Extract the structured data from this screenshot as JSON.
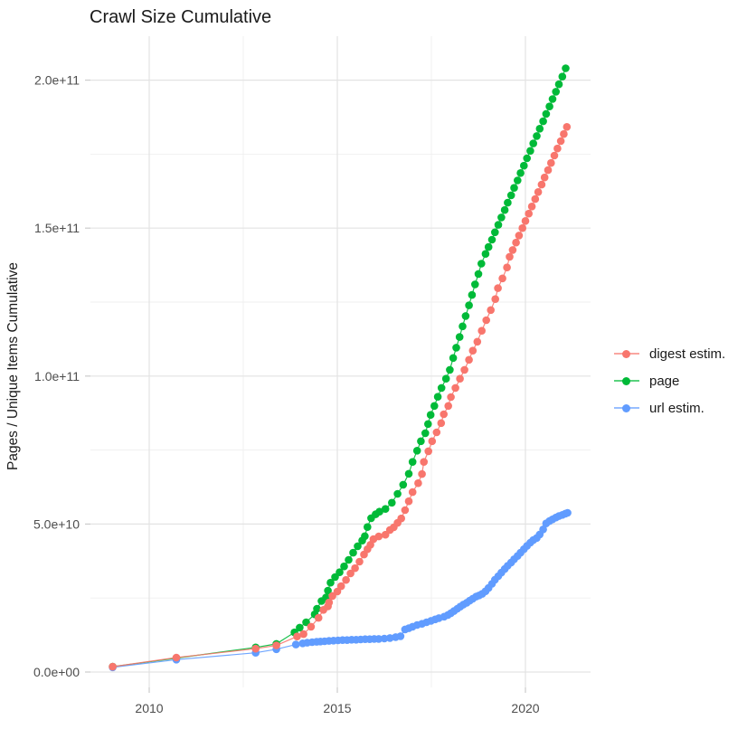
{
  "title": "Crawl Size Cumulative",
  "axes": {
    "y_title": "Pages / Unique Items Cumulative",
    "y_ticks": [
      "0.0e+00",
      "5.0e+10",
      "1.0e+11",
      "1.5e+11",
      "2.0e+11"
    ],
    "y_tick_values_e9": [
      0,
      50,
      100,
      150,
      200
    ],
    "y_minor_values_e9": [
      25,
      75,
      125,
      175
    ],
    "x_ticks": [
      "2010",
      "2015",
      "2020"
    ],
    "x_tick_values": [
      2010,
      2015,
      2020
    ],
    "x_minor_values": [
      2012.5,
      2017.5
    ]
  },
  "legend": {
    "position": "right",
    "items": [
      {
        "label": "digest estim.",
        "color": "#F8766D"
      },
      {
        "label": "page",
        "color": "#00BA38"
      },
      {
        "label": "url estim.",
        "color": "#619CFF"
      }
    ]
  },
  "chart_data": {
    "type": "line",
    "title": "Crawl Size Cumulative",
    "xlabel": "",
    "ylabel": "Pages / Unique Items Cumulative",
    "x_unit": "decimal year",
    "value_unit": "items, in billions (1e9)",
    "xlim": [
      2008.6,
      2021.8
    ],
    "ylim_e9": [
      0,
      215
    ],
    "grid": true,
    "marker": "point",
    "series": [
      {
        "name": "digest estim.",
        "color": "#F8766D",
        "z": 3,
        "points": [
          [
            2009.03,
            1.8
          ],
          [
            2010.72,
            4.9
          ],
          [
            2012.83,
            7.9
          ],
          [
            2013.38,
            9.0
          ],
          [
            2013.93,
            12.0
          ],
          [
            2014.1,
            12.8
          ],
          [
            2014.3,
            15.3
          ],
          [
            2014.5,
            18.3
          ],
          [
            2014.63,
            21.0
          ],
          [
            2014.75,
            22.2
          ],
          [
            2014.78,
            23.5
          ],
          [
            2014.87,
            25.7
          ],
          [
            2015.0,
            27.2
          ],
          [
            2015.1,
            29.0
          ],
          [
            2015.23,
            31.1
          ],
          [
            2015.35,
            33.3
          ],
          [
            2015.47,
            35.1
          ],
          [
            2015.59,
            37.3
          ],
          [
            2015.71,
            39.7
          ],
          [
            2015.8,
            41.5
          ],
          [
            2015.88,
            43.0
          ],
          [
            2015.96,
            44.9
          ],
          [
            2016.1,
            45.8
          ],
          [
            2016.28,
            46.4
          ],
          [
            2016.4,
            48.0
          ],
          [
            2016.5,
            48.9
          ],
          [
            2016.6,
            50.4
          ],
          [
            2016.7,
            51.9
          ],
          [
            2016.8,
            54.7
          ],
          [
            2016.9,
            57.7
          ],
          [
            2017.0,
            60.8
          ],
          [
            2017.15,
            63.8
          ],
          [
            2017.25,
            66.9
          ],
          [
            2017.3,
            71.0
          ],
          [
            2017.42,
            74.6
          ],
          [
            2017.52,
            78.0
          ],
          [
            2017.64,
            81.0
          ],
          [
            2017.76,
            84.1
          ],
          [
            2017.83,
            87.1
          ],
          [
            2017.95,
            89.9
          ],
          [
            2018.02,
            92.9
          ],
          [
            2018.14,
            96.0
          ],
          [
            2018.26,
            99.1
          ],
          [
            2018.38,
            102.1
          ],
          [
            2018.5,
            105.5
          ],
          [
            2018.6,
            108.6
          ],
          [
            2018.72,
            111.6
          ],
          [
            2018.84,
            115.3
          ],
          [
            2018.96,
            118.9
          ],
          [
            2019.08,
            122.3
          ],
          [
            2019.2,
            126.0
          ],
          [
            2019.27,
            129.7
          ],
          [
            2019.39,
            133.0
          ],
          [
            2019.51,
            136.7
          ],
          [
            2019.58,
            140.3
          ],
          [
            2019.66,
            142.6
          ],
          [
            2019.75,
            145.1
          ],
          [
            2019.83,
            147.5
          ],
          [
            2019.92,
            150.0
          ],
          [
            2020.0,
            152.4
          ],
          [
            2020.09,
            154.9
          ],
          [
            2020.17,
            157.3
          ],
          [
            2020.26,
            159.8
          ],
          [
            2020.34,
            162.2
          ],
          [
            2020.43,
            164.7
          ],
          [
            2020.51,
            167.1
          ],
          [
            2020.6,
            169.6
          ],
          [
            2020.68,
            172.0
          ],
          [
            2020.77,
            174.5
          ],
          [
            2020.85,
            176.9
          ],
          [
            2020.94,
            179.4
          ],
          [
            2021.02,
            181.8
          ],
          [
            2021.1,
            184.2
          ]
        ]
      },
      {
        "name": "page",
        "color": "#00BA38",
        "z": 1,
        "points": [
          [
            2009.03,
            1.8
          ],
          [
            2010.72,
            4.7
          ],
          [
            2012.83,
            8.3
          ],
          [
            2013.38,
            9.5
          ],
          [
            2013.86,
            13.4
          ],
          [
            2014.0,
            15.0
          ],
          [
            2014.17,
            16.8
          ],
          [
            2014.4,
            19.5
          ],
          [
            2014.46,
            21.4
          ],
          [
            2014.58,
            24.0
          ],
          [
            2014.7,
            25.2
          ],
          [
            2014.75,
            27.5
          ],
          [
            2014.82,
            30.2
          ],
          [
            2014.94,
            32.1
          ],
          [
            2015.06,
            33.7
          ],
          [
            2015.18,
            35.7
          ],
          [
            2015.3,
            37.9
          ],
          [
            2015.42,
            40.3
          ],
          [
            2015.54,
            42.5
          ],
          [
            2015.66,
            44.4
          ],
          [
            2015.73,
            45.9
          ],
          [
            2015.8,
            49.0
          ],
          [
            2015.9,
            52.0
          ],
          [
            2016.02,
            53.3
          ],
          [
            2016.12,
            54.2
          ],
          [
            2016.28,
            55.1
          ],
          [
            2016.45,
            57.2
          ],
          [
            2016.6,
            60.2
          ],
          [
            2016.75,
            63.3
          ],
          [
            2016.9,
            67.0
          ],
          [
            2017.0,
            71.0
          ],
          [
            2017.12,
            74.8
          ],
          [
            2017.22,
            78.0
          ],
          [
            2017.34,
            80.7
          ],
          [
            2017.41,
            83.8
          ],
          [
            2017.48,
            86.9
          ],
          [
            2017.58,
            89.9
          ],
          [
            2017.67,
            93.0
          ],
          [
            2017.77,
            96.0
          ],
          [
            2017.89,
            99.1
          ],
          [
            2017.99,
            102.1
          ],
          [
            2018.08,
            106.1
          ],
          [
            2018.16,
            109.6
          ],
          [
            2018.25,
            113.2
          ],
          [
            2018.33,
            116.8
          ],
          [
            2018.41,
            120.3
          ],
          [
            2018.5,
            123.9
          ],
          [
            2018.58,
            127.4
          ],
          [
            2018.66,
            131.0
          ],
          [
            2018.75,
            134.5
          ],
          [
            2018.83,
            138.0
          ],
          [
            2018.94,
            141.3
          ],
          [
            2019.02,
            143.6
          ],
          [
            2019.11,
            146.1
          ],
          [
            2019.19,
            148.6
          ],
          [
            2019.28,
            151.1
          ],
          [
            2019.36,
            153.6
          ],
          [
            2019.45,
            156.1
          ],
          [
            2019.53,
            158.6
          ],
          [
            2019.62,
            161.1
          ],
          [
            2019.7,
            163.6
          ],
          [
            2019.79,
            166.1
          ],
          [
            2019.87,
            168.6
          ],
          [
            2019.96,
            171.1
          ],
          [
            2020.04,
            173.6
          ],
          [
            2020.13,
            176.1
          ],
          [
            2020.21,
            178.6
          ],
          [
            2020.3,
            181.1
          ],
          [
            2020.38,
            183.6
          ],
          [
            2020.47,
            186.1
          ],
          [
            2020.55,
            188.6
          ],
          [
            2020.64,
            191.1
          ],
          [
            2020.72,
            193.6
          ],
          [
            2020.81,
            196.1
          ],
          [
            2020.89,
            198.6
          ],
          [
            2020.98,
            201.2
          ],
          [
            2021.07,
            204.0
          ]
        ]
      },
      {
        "name": "url estim.",
        "color": "#619CFF",
        "z": 2,
        "points": [
          [
            2009.03,
            1.6
          ],
          [
            2010.72,
            4.2
          ],
          [
            2012.83,
            6.5
          ],
          [
            2013.38,
            7.7
          ],
          [
            2013.9,
            9.3
          ],
          [
            2014.08,
            9.7
          ],
          [
            2014.2,
            9.9
          ],
          [
            2014.33,
            10.1
          ],
          [
            2014.45,
            10.2
          ],
          [
            2014.55,
            10.3
          ],
          [
            2014.66,
            10.4
          ],
          [
            2014.78,
            10.5
          ],
          [
            2014.9,
            10.6
          ],
          [
            2015.02,
            10.7
          ],
          [
            2015.14,
            10.8
          ],
          [
            2015.26,
            10.8
          ],
          [
            2015.38,
            10.9
          ],
          [
            2015.5,
            10.9
          ],
          [
            2015.62,
            11.0
          ],
          [
            2015.74,
            11.1
          ],
          [
            2015.86,
            11.1
          ],
          [
            2015.98,
            11.2
          ],
          [
            2016.1,
            11.2
          ],
          [
            2016.25,
            11.3
          ],
          [
            2016.4,
            11.5
          ],
          [
            2016.55,
            11.8
          ],
          [
            2016.68,
            12.1
          ],
          [
            2016.8,
            14.4
          ],
          [
            2016.9,
            14.8
          ],
          [
            2017.0,
            15.3
          ],
          [
            2017.12,
            15.9
          ],
          [
            2017.25,
            16.3
          ],
          [
            2017.37,
            16.8
          ],
          [
            2017.49,
            17.3
          ],
          [
            2017.6,
            17.8
          ],
          [
            2017.7,
            18.2
          ],
          [
            2017.84,
            18.7
          ],
          [
            2017.94,
            19.3
          ],
          [
            2018.02,
            19.9
          ],
          [
            2018.1,
            20.6
          ],
          [
            2018.19,
            21.4
          ],
          [
            2018.27,
            22.1
          ],
          [
            2018.35,
            22.8
          ],
          [
            2018.44,
            23.4
          ],
          [
            2018.52,
            24.1
          ],
          [
            2018.6,
            24.8
          ],
          [
            2018.69,
            25.5
          ],
          [
            2018.77,
            25.9
          ],
          [
            2018.85,
            26.4
          ],
          [
            2018.94,
            27.3
          ],
          [
            2019.02,
            28.4
          ],
          [
            2019.11,
            29.8
          ],
          [
            2019.19,
            31.2
          ],
          [
            2019.28,
            32.4
          ],
          [
            2019.36,
            33.6
          ],
          [
            2019.45,
            34.8
          ],
          [
            2019.53,
            35.9
          ],
          [
            2019.62,
            37.0
          ],
          [
            2019.7,
            38.1
          ],
          [
            2019.79,
            39.2
          ],
          [
            2019.87,
            40.3
          ],
          [
            2019.96,
            41.5
          ],
          [
            2020.04,
            42.6
          ],
          [
            2020.13,
            43.7
          ],
          [
            2020.21,
            44.6
          ],
          [
            2020.3,
            45.3
          ],
          [
            2020.38,
            46.5
          ],
          [
            2020.47,
            48.2
          ],
          [
            2020.55,
            50.2
          ],
          [
            2020.64,
            51.0
          ],
          [
            2020.72,
            51.6
          ],
          [
            2020.81,
            52.2
          ],
          [
            2020.89,
            52.7
          ],
          [
            2020.98,
            53.1
          ],
          [
            2021.06,
            53.5
          ],
          [
            2021.12,
            53.8
          ]
        ]
      }
    ]
  }
}
